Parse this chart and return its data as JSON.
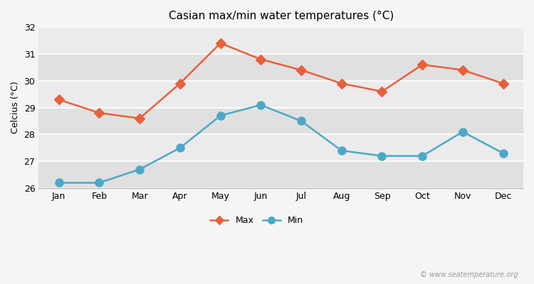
{
  "months": [
    "Jan",
    "Feb",
    "Mar",
    "Apr",
    "May",
    "Jun",
    "Jul",
    "Aug",
    "Sep",
    "Oct",
    "Nov",
    "Dec"
  ],
  "max_temps": [
    29.3,
    28.8,
    28.6,
    29.9,
    31.4,
    30.8,
    30.4,
    29.9,
    29.6,
    30.6,
    30.4,
    29.9
  ],
  "min_temps": [
    26.2,
    26.2,
    26.7,
    27.5,
    28.7,
    29.1,
    28.5,
    27.4,
    27.2,
    27.2,
    28.1,
    27.3
  ],
  "max_color": "#e8603c",
  "min_color": "#4da8c8",
  "title": "Casian max/min water temperatures (°C)",
  "ylabel": "Celcius (°C)",
  "ylim": [
    26.0,
    32.0
  ],
  "yticks": [
    26,
    27,
    28,
    29,
    30,
    31,
    32
  ],
  "band_colors": [
    "#e0e0e0",
    "#ebebeb"
  ],
  "outer_bg": "#f5f5f5",
  "watermark": "© www.seatemperature.org",
  "legend_max": "Max",
  "legend_min": "Min",
  "line_width": 1.8,
  "marker_size": 7
}
